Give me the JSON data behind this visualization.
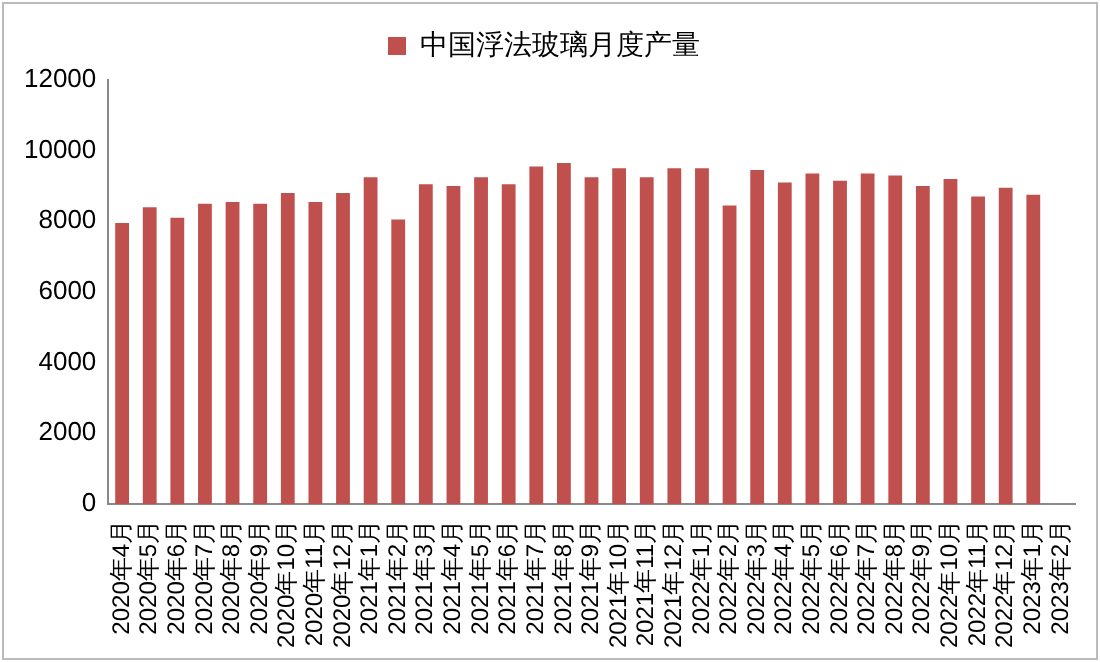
{
  "chart_data": {
    "type": "bar",
    "categories": [
      "2020年4月",
      "2020年5月",
      "2020年6月",
      "2020年7月",
      "2020年8月",
      "2020年9月",
      "2020年10月",
      "2020年11月",
      "2020年12月",
      "2021年1月",
      "2021年2月",
      "2021年3月",
      "2021年4月",
      "2021年5月",
      "2021年6月",
      "2021年7月",
      "2021年8月",
      "2021年9月",
      "2021年10月",
      "2021年11月",
      "2021年12月",
      "2022年1月",
      "2022年2月",
      "2022年3月",
      "2022年4月",
      "2022年5月",
      "2022年6月",
      "2022年7月",
      "2022年8月",
      "2022年9月",
      "2022年10月",
      "2022年11月",
      "2022年12月",
      "2023年1月",
      "2023年2月"
    ],
    "series": [
      {
        "name": "中国浮法玻璃月度产量",
        "color": "#c0504d",
        "values": [
          7950,
          8400,
          8100,
          8500,
          8550,
          8500,
          8800,
          8550,
          8800,
          9250,
          8050,
          9050,
          9000,
          9250,
          9050,
          9550,
          9650,
          9250,
          9500,
          9250,
          9500,
          9500,
          8450,
          9450,
          9100,
          9350,
          9150,
          9350,
          9300,
          9000,
          9200,
          8700,
          8950,
          8750,
          null
        ]
      }
    ],
    "ylim": [
      0,
      12000
    ],
    "yticks": [
      0,
      2000,
      4000,
      6000,
      8000,
      10000,
      12000
    ],
    "grid": false,
    "legend": "top"
  }
}
